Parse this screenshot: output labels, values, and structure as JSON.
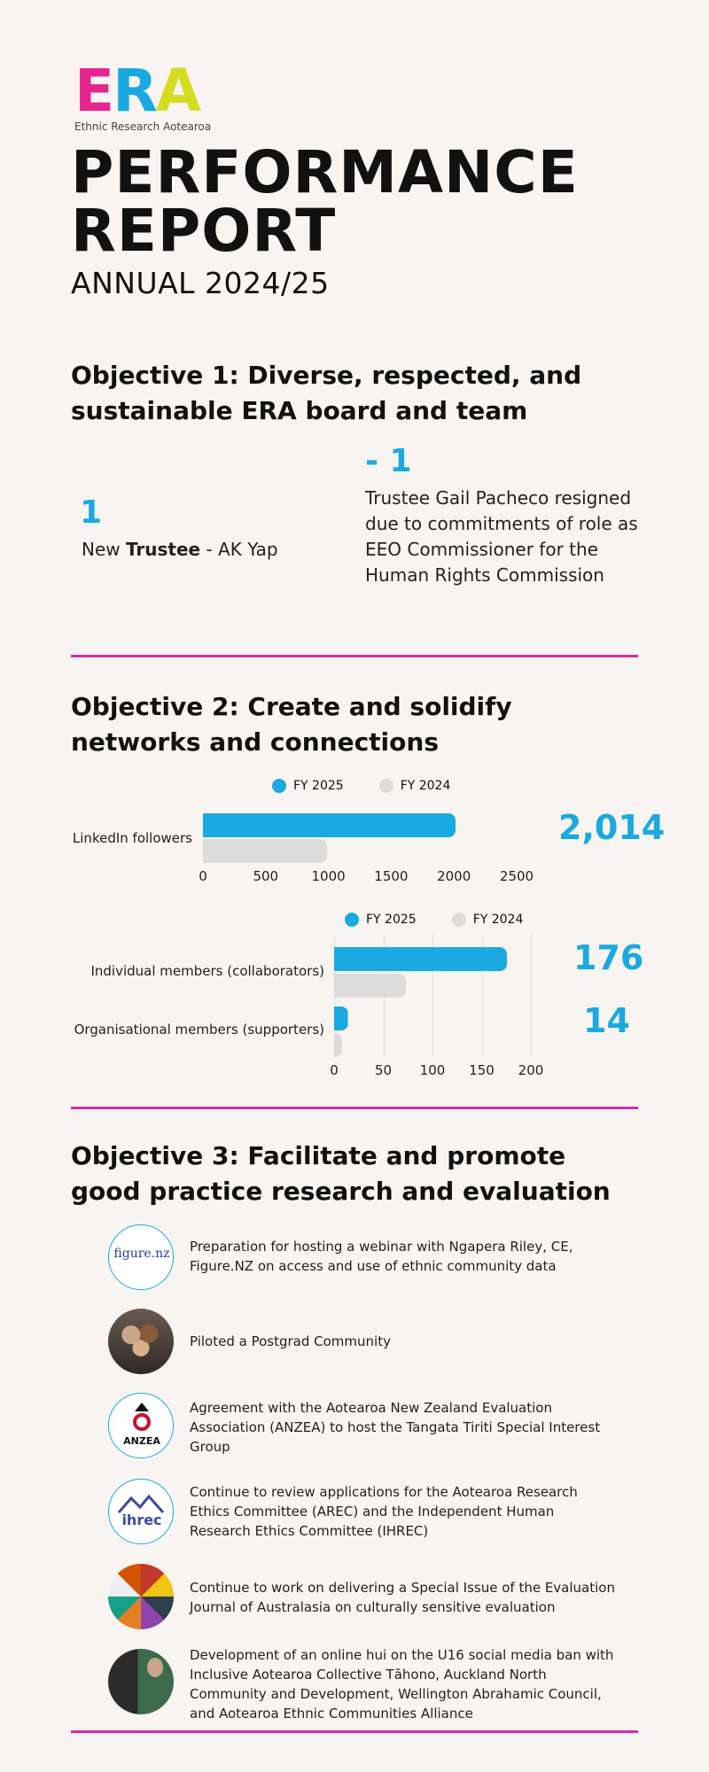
{
  "logo": {
    "letters": [
      "E",
      "R",
      "A"
    ],
    "subtitle": "Ethnic Research Aotearoa"
  },
  "title_line1": "PERFORMANCE",
  "title_line2": "REPORT",
  "subtitle": "ANNUAL 2024/25",
  "objective1": {
    "heading": "Objective 1: Diverse, respected, and sustainable ERA board and team",
    "stat1": {
      "number": "1",
      "text_prefix": "New ",
      "text_bold": "Trustee",
      "text_suffix": " - AK Yap"
    },
    "stat2": {
      "number": "- 1",
      "text": "Trustee Gail Pacheco resigned due to commitments of role as EEO Commissioner for the Human Rights Commission"
    }
  },
  "objective2": {
    "heading": "Objective 2: Create and solidify networks and connections"
  },
  "chart_data": [
    {
      "type": "bar",
      "orientation": "horizontal",
      "categories": [
        "LinkedIn followers"
      ],
      "series": [
        {
          "name": "FY 2025",
          "values": [
            2014
          ],
          "color": "#1aa9e0"
        },
        {
          "name": "FY 2024",
          "values": [
            990
          ],
          "color": "#dcdcdc"
        }
      ],
      "xlim": [
        0,
        2500
      ],
      "ticks": [
        "0",
        "500",
        "1000",
        "1500",
        "2000",
        "2500"
      ],
      "highlight": "2,014",
      "legend": "top"
    },
    {
      "type": "bar",
      "orientation": "horizontal",
      "categories": [
        "Individual members (collaborators)",
        "Organisational members (supporters)"
      ],
      "series": [
        {
          "name": "FY 2025",
          "values": [
            176,
            14
          ],
          "color": "#1aa9e0"
        },
        {
          "name": "FY 2024",
          "values": [
            73,
            8
          ],
          "color": "#dcdcdc"
        }
      ],
      "xlim": [
        0,
        200
      ],
      "ticks": [
        "0",
        "50",
        "100",
        "150",
        "200"
      ],
      "highlights": [
        "176",
        "14"
      ],
      "legend": "top",
      "grid": true
    }
  ],
  "objective3": {
    "heading": "Objective 3: Facilitate and promote good practice research and evaluation",
    "items": [
      {
        "icon": "figure-nz-logo",
        "logo_text": "figure.nz",
        "text": "Preparation for hosting a webinar with Ngapera Riley, CE, Figure.NZ on access and use of ethnic community data"
      },
      {
        "icon": "group-photo",
        "text": "Piloted a Postgrad Community"
      },
      {
        "icon": "anzea-logo",
        "logo_text": "ANZEA",
        "text": "Agreement with the Aotearoa New Zealand Evaluation Association (ANZEA) to host the Tangata Tiriti Special Interest Group"
      },
      {
        "icon": "ihrec-logo",
        "logo_text": "ihrec",
        "text": "Continue to review applications for the Aotearoa Research Ethics Committee (AREC) and the Independent Human Research Ethics Committee (IHREC)"
      },
      {
        "icon": "mosaic-image",
        "text": "Continue to work on delivering a Special Issue of the Evaluation Journal of Australasia on culturally sensitive evaluation"
      },
      {
        "icon": "poster-image",
        "text": "Development of an online hui on the U16 social media ban with Inclusive Aotearoa Collective Tāhono, Auckland North Community and Development, Wellington Abrahamic Council, and Aotearoa Ethnic Communities Alliance"
      }
    ]
  },
  "colors": {
    "accent_blue": "#1aa9e0",
    "rule_magenta": "#d62aa3",
    "grey_bar": "#dcdcdc",
    "background": "#f7f4f1"
  }
}
